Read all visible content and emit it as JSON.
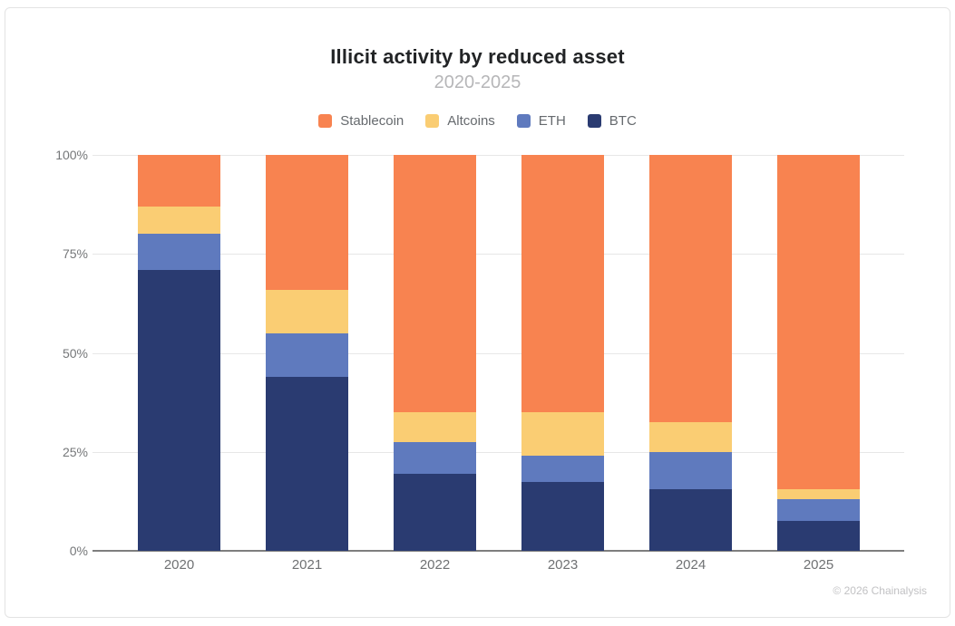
{
  "card": {
    "footer": "© 2026 Chainalysis"
  },
  "chart_data": {
    "type": "bar",
    "subtype": "stacked-percent-column",
    "title": "Illicit activity by reduced asset",
    "subtitle": "2020-2025",
    "categories": [
      "2020",
      "2021",
      "2022",
      "2023",
      "2024",
      "2025"
    ],
    "series": [
      {
        "name": "BTC",
        "color": "#2A3B71",
        "values": [
          71,
          44,
          19.5,
          17.5,
          15.5,
          7.5
        ]
      },
      {
        "name": "ETH",
        "color": "#5F7ABE",
        "values": [
          9,
          11,
          8,
          6.5,
          9.5,
          5.5
        ]
      },
      {
        "name": "Altcoins",
        "color": "#FACD73",
        "values": [
          7,
          11,
          7.5,
          11,
          7.5,
          2.5
        ]
      },
      {
        "name": "Stablecoin",
        "color": "#F88350",
        "values": [
          13,
          34,
          65,
          65,
          67.5,
          84.5
        ]
      }
    ],
    "legend_order": [
      "Stablecoin",
      "Altcoins",
      "ETH",
      "BTC"
    ],
    "y_ticks": [
      "100%",
      "75%",
      "50%",
      "25%",
      "0%"
    ],
    "ylim": [
      0,
      100
    ],
    "ylabel": "",
    "xlabel": "",
    "grid": true,
    "legend_position": "top"
  }
}
